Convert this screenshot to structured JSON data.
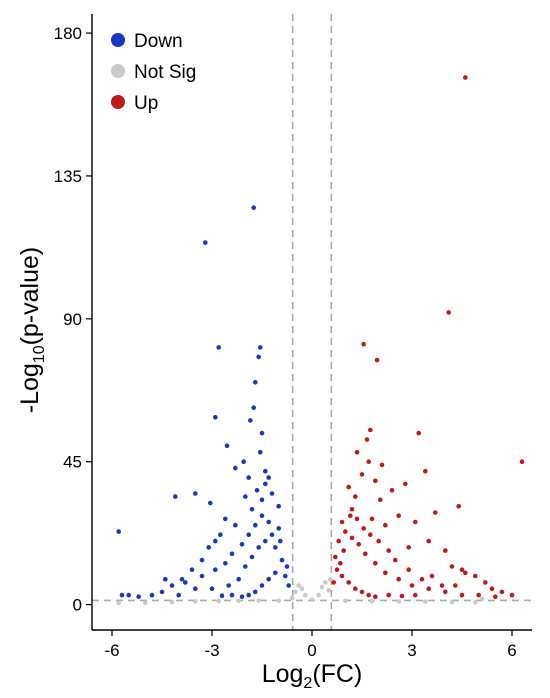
{
  "chart_data": {
    "type": "scatter",
    "title": "",
    "xlabel": {
      "base": "Log",
      "sub": "2",
      "rest": "(FC)"
    },
    "ylabel": {
      "base": "-Log",
      "sub": "10",
      "rest": "(p-value)"
    },
    "xlim": [
      -6.6,
      6.6
    ],
    "ylim": [
      -8,
      186
    ],
    "xticks": [
      -6,
      -3,
      0,
      3,
      6
    ],
    "xtick_labels": [
      "-6",
      "-3",
      "0",
      "3",
      "6"
    ],
    "yticks": [
      0,
      45,
      90,
      135,
      180
    ],
    "ytick_labels": [
      "0",
      "45",
      "90",
      "135",
      "180"
    ],
    "thresholds": {
      "log2fc": [
        -0.58,
        0.58
      ],
      "neglog10p": 1.3,
      "style": "dashed"
    },
    "grid": false,
    "legend": {
      "position": "top-left"
    },
    "colors": {
      "Down": "#1737c2",
      "Not Sig": "#c9c9c9",
      "Up": "#c0191c"
    },
    "series": [
      {
        "name": "Down",
        "points": [
          [
            -1.75,
            125
          ],
          [
            -3.2,
            114
          ],
          [
            -2.8,
            81
          ],
          [
            -1.55,
            81
          ],
          [
            -1.6,
            78
          ],
          [
            -1.7,
            70
          ],
          [
            -1.75,
            62
          ],
          [
            -2.9,
            59
          ],
          [
            -1.85,
            58
          ],
          [
            -2.55,
            50
          ],
          [
            -1.5,
            54
          ],
          [
            -2.3,
            43
          ],
          [
            -2.05,
            45
          ],
          [
            -1.55,
            48
          ],
          [
            -1.4,
            42
          ],
          [
            -1.9,
            40
          ],
          [
            -1.3,
            40
          ],
          [
            -1.65,
            36
          ],
          [
            -3.5,
            35
          ],
          [
            -4.1,
            34
          ],
          [
            -2.0,
            34
          ],
          [
            -1.4,
            38
          ],
          [
            -2.6,
            27
          ],
          [
            -2.3,
            25
          ],
          [
            -1.5,
            33
          ],
          [
            -1.2,
            35
          ],
          [
            -1.8,
            30
          ],
          [
            -1.0,
            31
          ],
          [
            -3.05,
            32
          ],
          [
            -2.75,
            22
          ],
          [
            -2.9,
            20
          ],
          [
            -3.1,
            18
          ],
          [
            -3.3,
            14
          ],
          [
            -3.6,
            11
          ],
          [
            -3.9,
            8
          ],
          [
            -4.2,
            6
          ],
          [
            -4.5,
            4
          ],
          [
            -4.8,
            3
          ],
          [
            -5.2,
            2.5
          ],
          [
            -5.5,
            3
          ],
          [
            -5.7,
            3
          ],
          [
            -5.8,
            23
          ],
          [
            -4.0,
            3
          ],
          [
            -3.5,
            5
          ],
          [
            -3.0,
            5
          ],
          [
            -2.5,
            6
          ],
          [
            -2.2,
            8
          ],
          [
            -2.0,
            12
          ],
          [
            -1.8,
            15
          ],
          [
            -1.6,
            18
          ],
          [
            -1.4,
            20
          ],
          [
            -1.2,
            22
          ],
          [
            -1.0,
            24
          ],
          [
            -0.9,
            14
          ],
          [
            -1.1,
            10
          ],
          [
            -1.3,
            8
          ],
          [
            -1.5,
            6
          ],
          [
            -1.7,
            4
          ],
          [
            -1.9,
            3
          ],
          [
            -2.1,
            2.5
          ],
          [
            -2.4,
            3
          ],
          [
            -2.7,
            2.8
          ],
          [
            -4.4,
            8
          ],
          [
            -3.8,
            7
          ],
          [
            -3.3,
            9
          ],
          [
            -2.9,
            11
          ],
          [
            -2.6,
            13
          ],
          [
            -2.4,
            16
          ],
          [
            -2.1,
            19
          ],
          [
            -1.9,
            22
          ],
          [
            -1.7,
            25
          ],
          [
            -1.5,
            28
          ],
          [
            -1.3,
            26
          ],
          [
            -1.1,
            18
          ],
          [
            -0.95,
            20
          ],
          [
            -0.8,
            9
          ],
          [
            -0.75,
            12
          ],
          [
            -0.7,
            6
          ]
        ]
      },
      {
        "name": "Not Sig",
        "points": [
          [
            -5.8,
            0.5
          ],
          [
            -5.0,
            0.6
          ],
          [
            -4.2,
            0.8
          ],
          [
            -3.5,
            1.0
          ],
          [
            -2.8,
            1.1
          ],
          [
            -2.2,
            1.2
          ],
          [
            -1.6,
            1.3
          ],
          [
            -1.0,
            1.2
          ],
          [
            -0.6,
            2.0
          ],
          [
            -0.5,
            4.0
          ],
          [
            -0.4,
            6.0
          ],
          [
            -0.3,
            5.0
          ],
          [
            -0.2,
            3.0
          ],
          [
            0.0,
            1.5
          ],
          [
            0.2,
            3.0
          ],
          [
            0.3,
            5.5
          ],
          [
            0.4,
            7.0
          ],
          [
            0.5,
            4.5
          ],
          [
            0.55,
            8.0
          ],
          [
            1.0,
            1.2
          ],
          [
            1.8,
            1.1
          ],
          [
            2.6,
            1.0
          ],
          [
            3.4,
            0.9
          ],
          [
            4.2,
            0.8
          ],
          [
            4.9,
            0.7
          ],
          [
            5.1,
            1.8
          ]
        ]
      },
      {
        "name": "Up",
        "points": [
          [
            4.6,
            166
          ],
          [
            4.1,
            92
          ],
          [
            1.55,
            82
          ],
          [
            1.95,
            77
          ],
          [
            6.3,
            45
          ],
          [
            3.2,
            54
          ],
          [
            1.75,
            55
          ],
          [
            1.65,
            52
          ],
          [
            1.35,
            48
          ],
          [
            1.7,
            45
          ],
          [
            2.1,
            44
          ],
          [
            3.4,
            42
          ],
          [
            1.5,
            41
          ],
          [
            2.8,
            38
          ],
          [
            1.9,
            39
          ],
          [
            2.4,
            36
          ],
          [
            1.1,
            37
          ],
          [
            1.3,
            34
          ],
          [
            2.05,
            33
          ],
          [
            3.7,
            29
          ],
          [
            4.4,
            31
          ],
          [
            3.1,
            26
          ],
          [
            2.6,
            28
          ],
          [
            1.2,
            30
          ],
          [
            2.2,
            25
          ],
          [
            1.8,
            27
          ],
          [
            0.9,
            26
          ],
          [
            3.5,
            20
          ],
          [
            4.0,
            17
          ],
          [
            2.9,
            18
          ],
          [
            4.2,
            12
          ],
          [
            4.6,
            10
          ],
          [
            4.5,
            11
          ],
          [
            4.9,
            9
          ],
          [
            5.2,
            7
          ],
          [
            5.4,
            5
          ],
          [
            5.7,
            4
          ],
          [
            6.0,
            3
          ],
          [
            5.0,
            3
          ],
          [
            4.5,
            3
          ],
          [
            4.0,
            4
          ],
          [
            3.5,
            5
          ],
          [
            3.0,
            6
          ],
          [
            2.6,
            8
          ],
          [
            2.2,
            10
          ],
          [
            1.9,
            13
          ],
          [
            1.6,
            16
          ],
          [
            1.4,
            19
          ],
          [
            1.2,
            21
          ],
          [
            1.0,
            23
          ],
          [
            0.8,
            20
          ],
          [
            0.7,
            15
          ],
          [
            0.75,
            11
          ],
          [
            0.65,
            7
          ],
          [
            0.9,
            9
          ],
          [
            1.1,
            7
          ],
          [
            1.3,
            5
          ],
          [
            1.5,
            4
          ],
          [
            1.7,
            3
          ],
          [
            1.9,
            2.5
          ],
          [
            2.3,
            3
          ],
          [
            2.7,
            2.7
          ],
          [
            3.1,
            3
          ],
          [
            3.9,
            6
          ],
          [
            3.3,
            8
          ],
          [
            2.9,
            11
          ],
          [
            2.5,
            14
          ],
          [
            2.3,
            17
          ],
          [
            2.0,
            20
          ],
          [
            1.75,
            22
          ],
          [
            1.55,
            24
          ],
          [
            1.35,
            27
          ],
          [
            1.15,
            28
          ],
          [
            0.95,
            17
          ],
          [
            0.85,
            13
          ],
          [
            3.6,
            9
          ],
          [
            4.3,
            6
          ],
          [
            5.5,
            2.5
          ]
        ]
      }
    ]
  }
}
